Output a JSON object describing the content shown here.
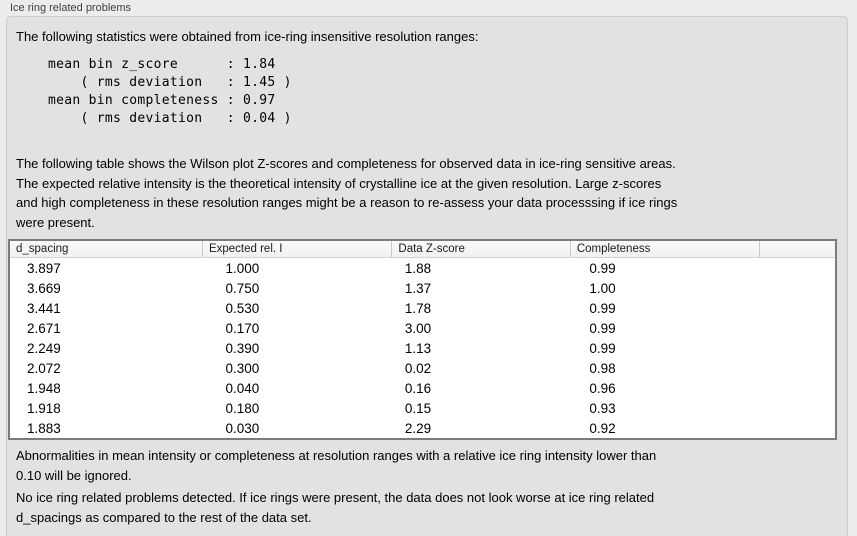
{
  "panel": {
    "title": "Ice ring related problems",
    "intro": "The following statistics were obtained from ice-ring insensitive resolution ranges:",
    "stats_text": "mean bin z_score      : 1.84\n    ( rms deviation   : 1.45 )\nmean bin completeness : 0.97\n    ( rms deviation   : 0.04 )",
    "table_caption": "The following table shows the Wilson plot Z-scores and completeness for observed data in ice-ring sensitive areas.\nThe expected relative intensity is the theoretical intensity of crystalline ice at the given resolution. Large z-scores\nand high completeness in these resolution ranges might be a reason to re-assess your data processsing if ice rings\nwere present.",
    "table": {
      "columns": [
        "d_spacing",
        "Expected rel. I",
        "Data Z-score",
        "Completeness"
      ],
      "rows": [
        [
          "3.897",
          "1.000",
          "1.88",
          "0.99"
        ],
        [
          "3.669",
          "0.750",
          "1.37",
          "1.00"
        ],
        [
          "3.441",
          "0.530",
          "1.78",
          "0.99"
        ],
        [
          "2.671",
          "0.170",
          "3.00",
          "0.99"
        ],
        [
          "2.249",
          "0.390",
          "1.13",
          "0.99"
        ],
        [
          "2.072",
          "0.300",
          "0.02",
          "0.98"
        ],
        [
          "1.948",
          "0.040",
          "0.16",
          "0.96"
        ],
        [
          "1.918",
          "0.180",
          "0.15",
          "0.93"
        ],
        [
          "1.883",
          "0.030",
          "2.29",
          "0.92"
        ]
      ]
    },
    "ignore_note": "Abnormalities in mean intensity or completeness at resolution ranges with a relative ice ring intensity lower than\n0.10 will be ignored.",
    "conclusion": "No ice ring related problems detected. If ice rings were present, the data does not look worse at ice ring related\nd_spacings as compared to the rest of the data set."
  }
}
